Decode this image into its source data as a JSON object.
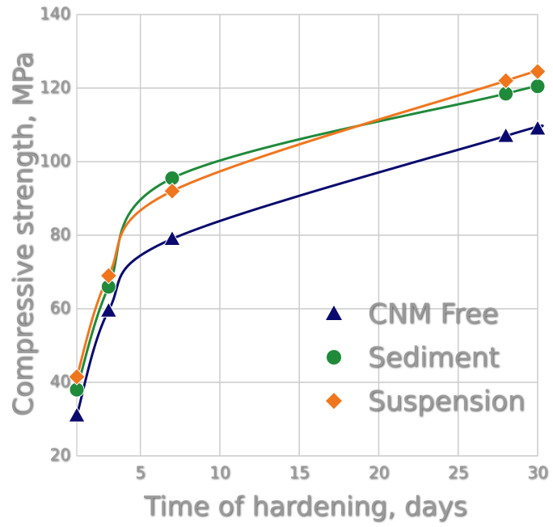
{
  "chart_data": {
    "type": "line",
    "x_label": "Time of hardening, days",
    "y_label": "Compressive strength, MPa",
    "x": [
      1,
      3,
      7,
      28,
      30
    ],
    "series": [
      {
        "name": "CNM Free",
        "color": "#0a0a6e",
        "marker": "triangle",
        "values": [
          31,
          59.5,
          79,
          107,
          109
        ]
      },
      {
        "name": "Sediment",
        "color": "#1f8a3a",
        "marker": "circle",
        "values": [
          38,
          66,
          95.5,
          118.5,
          120.5
        ]
      },
      {
        "name": "Suspension",
        "color": "#f0761e",
        "marker": "diamond",
        "values": [
          41.5,
          69,
          92,
          122,
          124.5
        ]
      }
    ],
    "xlim": [
      1,
      30
    ],
    "xticks": [
      5,
      10,
      15,
      20,
      25,
      30
    ],
    "ylim": [
      20,
      140
    ],
    "yticks": [
      20,
      40,
      60,
      80,
      100,
      120,
      140
    ],
    "grid": true,
    "legend": "lower right"
  }
}
